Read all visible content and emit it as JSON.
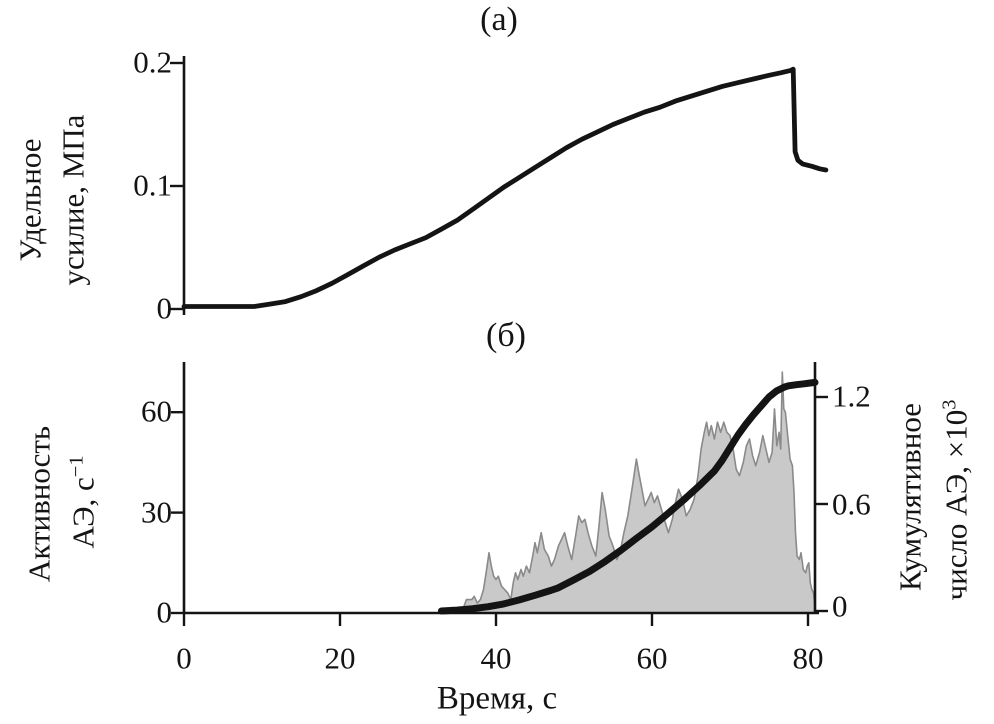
{
  "figure": {
    "panel_a_tag": "(а)",
    "panel_b_tag": "(б)"
  },
  "colors": {
    "ink": "#141414",
    "area_fill": "#c9c9c9",
    "area_stroke": "#8a8a8a"
  },
  "chart_data": [
    {
      "type": "line",
      "panel": "(а)",
      "title": "",
      "xlabel": "",
      "ylabel_line1": "Удельное",
      "ylabel_line2": "усилие, МПа",
      "ylim": [
        0,
        0.206
      ],
      "yticks": [
        0,
        0.1,
        0.2
      ],
      "ytick_labels": [
        "0",
        "0.1",
        "0.2"
      ],
      "xlim": [
        0,
        83
      ],
      "grid": "off",
      "series": [
        {
          "name": "specific-stress-MPa",
          "points": [
            [
              0,
              0.002
            ],
            [
              3,
              0.002
            ],
            [
              6,
              0.002
            ],
            [
              9,
              0.002
            ],
            [
              11,
              0.004
            ],
            [
              13,
              0.006
            ],
            [
              15,
              0.01
            ],
            [
              17,
              0.015
            ],
            [
              19,
              0.021
            ],
            [
              21,
              0.028
            ],
            [
              23,
              0.035
            ],
            [
              25,
              0.042
            ],
            [
              27,
              0.048
            ],
            [
              29,
              0.053
            ],
            [
              31,
              0.058
            ],
            [
              33,
              0.065
            ],
            [
              35,
              0.072
            ],
            [
              37,
              0.081
            ],
            [
              39,
              0.09
            ],
            [
              41,
              0.099
            ],
            [
              43,
              0.107
            ],
            [
              45,
              0.115
            ],
            [
              47,
              0.123
            ],
            [
              49,
              0.131
            ],
            [
              51,
              0.138
            ],
            [
              53,
              0.144
            ],
            [
              55,
              0.15
            ],
            [
              57,
              0.155
            ],
            [
              59,
              0.16
            ],
            [
              61,
              0.164
            ],
            [
              63,
              0.169
            ],
            [
              65,
              0.173
            ],
            [
              67,
              0.177
            ],
            [
              69,
              0.181
            ],
            [
              71,
              0.184
            ],
            [
              73,
              0.187
            ],
            [
              75,
              0.19
            ],
            [
              76.5,
              0.192
            ],
            [
              77.8,
              0.194
            ],
            [
              78.1,
              0.195
            ],
            [
              78.35,
              0.128
            ],
            [
              78.7,
              0.121
            ],
            [
              79.3,
              0.118
            ],
            [
              80.5,
              0.116
            ],
            [
              81.5,
              0.114
            ],
            [
              82.3,
              0.113
            ]
          ]
        }
      ]
    },
    {
      "type": "area+line",
      "panel": "(б)",
      "xlabel": "Время, с",
      "xlim": [
        0,
        81.4
      ],
      "xticks": [
        0,
        20,
        40,
        60,
        80
      ],
      "xtick_labels": [
        "0",
        "20",
        "40",
        "60",
        "80"
      ],
      "ylabel_left_line1": "Активность",
      "ylabel_left_line2_base": "АЭ, с",
      "ylabel_left_line2_sup": "−1",
      "ylim_left": [
        0,
        75
      ],
      "yticks_left": [
        0,
        30,
        60
      ],
      "ytick_left_labels": [
        "0",
        "30",
        "60"
      ],
      "ylabel_right_line1": "Кумулятивное",
      "ylabel_right_line2_base": "число АЭ, ×10",
      "ylabel_right_line2_sup": "3",
      "ylim_right": [
        0,
        1.4
      ],
      "yticks_right": [
        0,
        0.6,
        1.2
      ],
      "ytick_right_labels": [
        "0",
        "0.6",
        "1.2"
      ],
      "grid": "off",
      "series": [
        {
          "name": "ae-activity-per-s",
          "type": "area",
          "axis": "left",
          "points": [
            [
              33,
              0
            ],
            [
              35.7,
              0
            ],
            [
              35.9,
              2
            ],
            [
              36.2,
              4
            ],
            [
              36.9,
              4
            ],
            [
              37.2,
              5
            ],
            [
              37.6,
              3
            ],
            [
              38,
              4
            ],
            [
              38.4,
              7
            ],
            [
              38.8,
              13
            ],
            [
              39.1,
              18
            ],
            [
              39.4,
              14
            ],
            [
              39.7,
              11
            ],
            [
              40,
              10
            ],
            [
              40.3,
              11
            ],
            [
              40.7,
              8
            ],
            [
              41.1,
              7
            ],
            [
              41.5,
              6
            ],
            [
              41.9,
              4
            ],
            [
              42.2,
              9
            ],
            [
              42.5,
              12
            ],
            [
              42.8,
              10
            ],
            [
              43.2,
              13
            ],
            [
              43.5,
              11
            ],
            [
              43.9,
              14
            ],
            [
              44.3,
              12
            ],
            [
              44.7,
              17
            ],
            [
              45,
              21
            ],
            [
              45.3,
              18
            ],
            [
              45.8,
              24
            ],
            [
              46.2,
              19
            ],
            [
              46.7,
              17
            ],
            [
              47.1,
              14
            ],
            [
              47.5,
              16
            ],
            [
              48,
              20
            ],
            [
              48.4,
              22
            ],
            [
              48.8,
              24
            ],
            [
              49.2,
              20
            ],
            [
              49.7,
              16
            ],
            [
              50.2,
              23
            ],
            [
              50.6,
              29
            ],
            [
              51,
              27
            ],
            [
              51.4,
              28
            ],
            [
              51.8,
              24
            ],
            [
              52.3,
              20
            ],
            [
              52.8,
              17
            ],
            [
              53.2,
              26
            ],
            [
              53.6,
              36
            ],
            [
              54,
              31
            ],
            [
              54.5,
              23
            ],
            [
              55,
              20
            ],
            [
              55.5,
              16
            ],
            [
              55.9,
              18
            ],
            [
              56.4,
              24
            ],
            [
              56.9,
              29
            ],
            [
              57.5,
              38
            ],
            [
              58,
              46
            ],
            [
              58.3,
              42
            ],
            [
              58.7,
              37
            ],
            [
              59.1,
              32
            ],
            [
              59.5,
              34
            ],
            [
              59.9,
              36
            ],
            [
              60.3,
              33
            ],
            [
              60.7,
              35
            ],
            [
              61.2,
              31
            ],
            [
              61.7,
              27
            ],
            [
              62.1,
              24
            ],
            [
              62.6,
              28
            ],
            [
              63,
              33
            ],
            [
              63.4,
              37
            ],
            [
              63.9,
              34
            ],
            [
              64.4,
              29
            ],
            [
              64.9,
              31
            ],
            [
              65.4,
              34
            ],
            [
              65.9,
              41
            ],
            [
              66.3,
              49
            ],
            [
              66.7,
              54
            ],
            [
              67,
              57
            ],
            [
              67.3,
              53
            ],
            [
              67.6,
              56
            ],
            [
              68,
              52
            ],
            [
              68.4,
              57
            ],
            [
              68.8,
              54
            ],
            [
              69.2,
              57
            ],
            [
              69.6,
              54
            ],
            [
              70,
              53
            ],
            [
              70.4,
              49
            ],
            [
              70.8,
              43
            ],
            [
              71.2,
              41
            ],
            [
              71.7,
              45
            ],
            [
              72.1,
              50
            ],
            [
              72.5,
              52
            ],
            [
              72.9,
              47
            ],
            [
              73.3,
              44
            ],
            [
              73.8,
              48
            ],
            [
              74.2,
              53
            ],
            [
              74.6,
              49
            ],
            [
              75,
              45
            ],
            [
              75.4,
              48
            ],
            [
              75.7,
              61
            ],
            [
              76,
              50
            ],
            [
              76.3,
              54
            ],
            [
              76.5,
              49
            ],
            [
              76.7,
              72
            ],
            [
              76.9,
              61
            ],
            [
              77.1,
              60
            ],
            [
              77.4,
              53
            ],
            [
              77.7,
              46
            ],
            [
              78,
              44
            ],
            [
              78.2,
              36
            ],
            [
              78.4,
              24
            ],
            [
              78.6,
              17
            ],
            [
              78.9,
              16
            ],
            [
              79.1,
              18
            ],
            [
              79.4,
              13
            ],
            [
              79.7,
              12
            ],
            [
              79.9,
              14
            ],
            [
              80.1,
              15
            ],
            [
              80.3,
              9
            ],
            [
              80.5,
              7
            ],
            [
              80.7,
              6
            ],
            [
              80.85,
              3
            ],
            [
              80.95,
              0
            ]
          ]
        },
        {
          "name": "cumulative-ae-count-x1000",
          "type": "line",
          "axis": "right",
          "points": [
            [
              33,
              0
            ],
            [
              35,
              0.005
            ],
            [
              37,
              0.013
            ],
            [
              39,
              0.024
            ],
            [
              41,
              0.04
            ],
            [
              43,
              0.062
            ],
            [
              45,
              0.088
            ],
            [
              47,
              0.115
            ],
            [
              48,
              0.13
            ],
            [
              50,
              0.175
            ],
            [
              52,
              0.222
            ],
            [
              54,
              0.278
            ],
            [
              56,
              0.34
            ],
            [
              58,
              0.407
            ],
            [
              60,
              0.472
            ],
            [
              62,
              0.545
            ],
            [
              64,
              0.62
            ],
            [
              66,
              0.7
            ],
            [
              68,
              0.785
            ],
            [
              69,
              0.845
            ],
            [
              70,
              0.915
            ],
            [
              71,
              0.985
            ],
            [
              72,
              1.045
            ],
            [
              73,
              1.1
            ],
            [
              74,
              1.15
            ],
            [
              75,
              1.2
            ],
            [
              76,
              1.235
            ],
            [
              77,
              1.256
            ],
            [
              77.5,
              1.263
            ],
            [
              78.5,
              1.269
            ],
            [
              79.5,
              1.274
            ],
            [
              80.4,
              1.279
            ],
            [
              80.9,
              1.282
            ]
          ]
        }
      ]
    }
  ]
}
